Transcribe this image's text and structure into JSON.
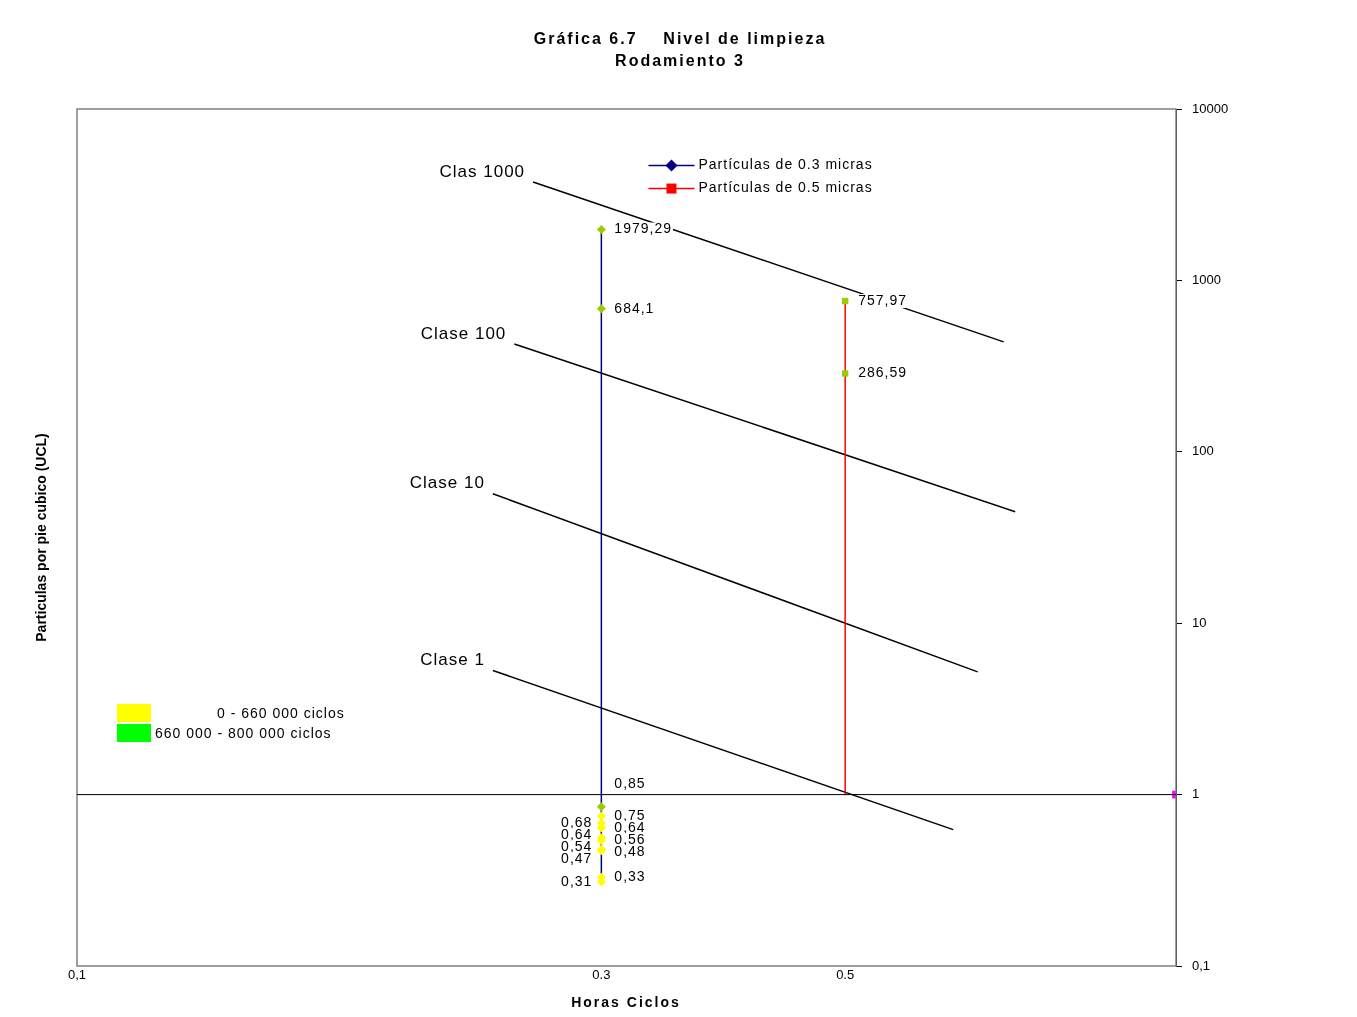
{
  "chart_data": {
    "type": "line",
    "title": "Gráfica 6.7    Nivel de limpieza",
    "subtitle": "Rodamiento 3",
    "xlabel": "Horas Ciclos",
    "ylabel": "Particulas por pie cubico (UCL)",
    "log": "xy",
    "xlim": [
      0.1,
      1
    ],
    "xticks": [
      {
        "value": 0.1,
        "label": "0,1"
      },
      {
        "value": 0.3,
        "label": "0.3"
      },
      {
        "value": 0.5,
        "label": "0.5"
      }
    ],
    "ylim": [
      0.1,
      10000
    ],
    "yticks": [
      {
        "value": 0.1,
        "label": "0,1"
      },
      1,
      10,
      100,
      1000,
      10000
    ],
    "grid": false,
    "legend": "top",
    "marker": "diamond",
    "ref_lines": [
      {
        "axis": "y",
        "value": 1,
        "color": "#000000"
      }
    ],
    "annotations": [
      "0 - 660 000 ciclos",
      "660 000 - 800 000 ciclos"
    ],
    "series": [
      {
        "name": "Partículas de 0.3 micras",
        "color": "#000080",
        "x": [
          0.3,
          0.3,
          0.3,
          0.3,
          0.3,
          0.3,
          0.3,
          0.3,
          0.3,
          0.3,
          0.3,
          0.3,
          0.3
        ],
        "values": [
          1979.29,
          684.1,
          0.85,
          0.75,
          0.68,
          0.64,
          0.64,
          0.56,
          0.54,
          0.48,
          0.47,
          0.33,
          0.31
        ],
        "colors": [
          "#99cc00",
          "#99cc00",
          "#99cc00",
          "#ffff00",
          "#ffff00",
          "#ffff00",
          "#ffff00",
          "#ffff00",
          "#ffff00",
          "#ffff00",
          "#ffff00",
          "#ffff00",
          "#ffff00"
        ],
        "value_labels": [
          "1979,29",
          "684,1",
          "0,85",
          "0,75",
          "0,68",
          "0,64",
          "0,64",
          "0,56",
          "0,54",
          "0,48",
          "0,47",
          "0,33",
          "0,31"
        ]
      },
      {
        "name": "Partículas de 0.5 micras",
        "color": "#ff0000",
        "marker": "square",
        "x": [
          0.5,
          0.5,
          0.5
        ],
        "values": [
          757.97,
          286.59,
          1
        ],
        "colors": [
          "#99cc00",
          "#99cc00",
          null
        ],
        "value_labels": [
          "757,97",
          "286,59",
          null
        ]
      },
      {
        "type": "scatter",
        "color": "#ff00ff",
        "marker": "square",
        "x": [
          1
        ],
        "values": [
          1
        ]
      },
      {
        "name": "Clas 1000",
        "color": "#000000",
        "marker": "none",
        "x": [
          0.26,
          0.697
        ],
        "values": [
          3750,
          438
        ]
      },
      {
        "name": "Clase 100",
        "color": "#000000",
        "marker": "none",
        "x": [
          0.25,
          0.714
        ],
        "values": [
          426,
          44.7
        ]
      },
      {
        "name": "Clase 10",
        "color": "#000000",
        "marker": "none",
        "x": [
          0.239,
          0.66
        ],
        "values": [
          56.9,
          5.2
        ]
      },
      {
        "name": "Clase 1",
        "color": "#000000",
        "marker": "none",
        "x": [
          0.239,
          0.627
        ],
        "values": [
          5.3,
          0.625
        ]
      }
    ]
  }
}
